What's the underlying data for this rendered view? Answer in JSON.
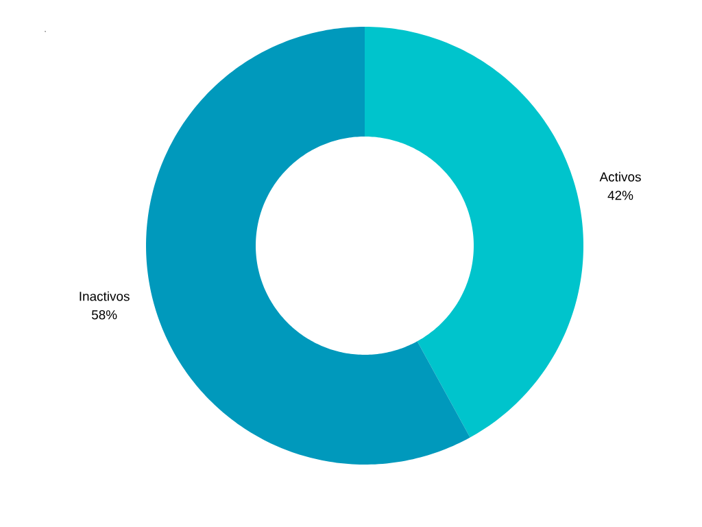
{
  "chart_data": {
    "type": "donut",
    "categories": [
      "Inactivos",
      "Activos"
    ],
    "values": [
      58,
      42
    ],
    "colors": [
      "#0099bc",
      "#00c4cc"
    ],
    "value_labels": [
      "58%",
      "42%"
    ],
    "annotations": [
      ","
    ]
  }
}
